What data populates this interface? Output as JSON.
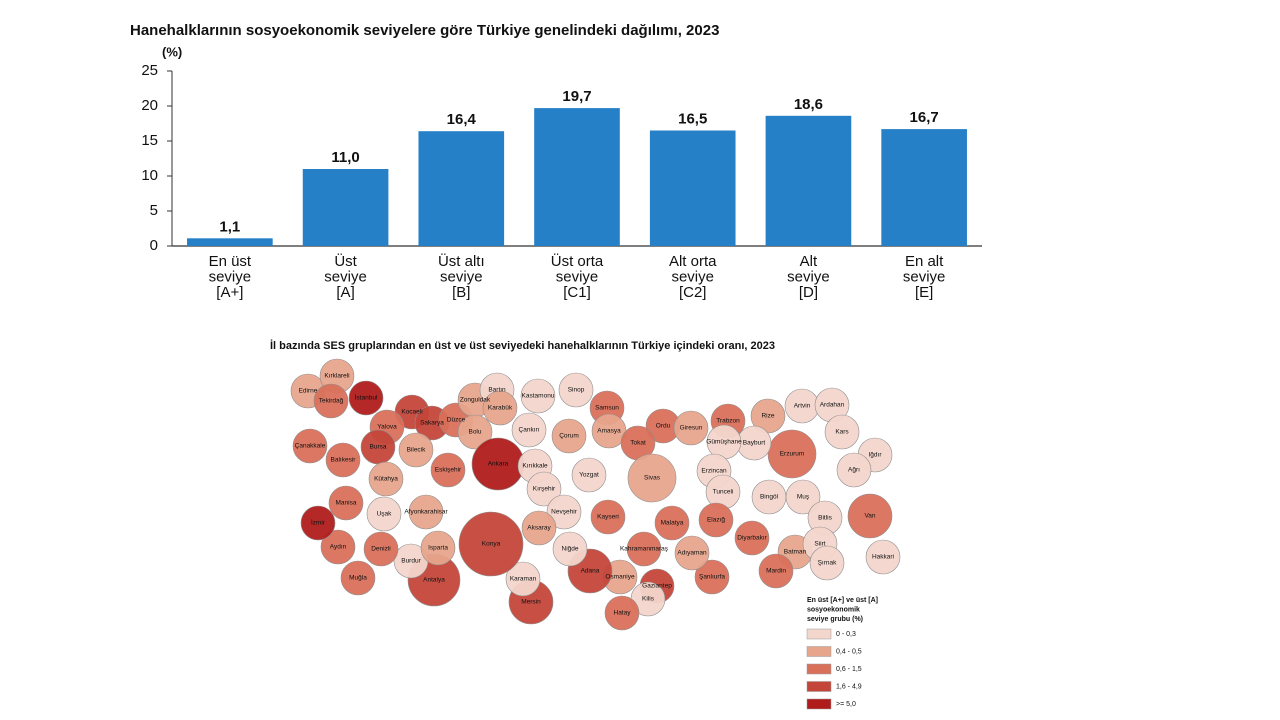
{
  "chart_data": [
    {
      "type": "bar",
      "title": "Hanehalklarının sosyoekonomik seviyelere göre Türkiye genelindeki dağılımı, 2023",
      "y_label": "(%)",
      "categories": [
        [
          "En üst",
          "seviye",
          "[A+]"
        ],
        [
          "Üst",
          "seviye",
          "[A]"
        ],
        [
          "Üst altı",
          "seviye",
          "[B]"
        ],
        [
          "Üst orta",
          "seviye",
          "[C1]"
        ],
        [
          "Alt orta",
          "seviye",
          "[C2]"
        ],
        [
          "Alt",
          "seviye",
          "[D]"
        ],
        [
          "En alt",
          "seviye",
          "[E]"
        ]
      ],
      "values": [
        1.1,
        11.0,
        16.4,
        19.7,
        16.5,
        18.6,
        16.7
      ],
      "value_labels": [
        "1,1",
        "11,0",
        "16,4",
        "19,7",
        "16,5",
        "18,6",
        "16,7"
      ],
      "color": "#2580c8",
      "ylim": [
        0,
        25
      ],
      "yticks": [
        0,
        5,
        10,
        15,
        20,
        25
      ]
    },
    {
      "type": "map",
      "title": "İl bazında SES gruplarından en üst ve üst seviyedeki hanehalklarının Türkiye içindeki oranı, 2023",
      "legend_title": [
        "En üst [A+] ve üst [A]",
        "sosyoekonomik",
        "seviye grubu (%)"
      ],
      "classes": [
        {
          "label": "0  -  0,3",
          "color": "#f3d6cc"
        },
        {
          "label": "0,4 - 0,5",
          "color": "#e7a58c"
        },
        {
          "label": "0,6 - 1,5",
          "color": "#d9705a"
        },
        {
          "label": "1,6 - 4,9",
          "color": "#c4463a"
        },
        {
          "label": ">= 5,0",
          "color": "#b01c1c"
        }
      ],
      "provinces": [
        {
          "name": "Edirne",
          "class": 1
        },
        {
          "name": "Kırklareli",
          "class": 1
        },
        {
          "name": "Tekirdağ",
          "class": 2
        },
        {
          "name": "İstanbul",
          "class": 4
        },
        {
          "name": "Kocaeli",
          "class": 3
        },
        {
          "name": "Yalova",
          "class": 2
        },
        {
          "name": "Sakarya",
          "class": 3
        },
        {
          "name": "Düzce",
          "class": 2
        },
        {
          "name": "Zonguldak",
          "class": 1
        },
        {
          "name": "Bartın",
          "class": 0
        },
        {
          "name": "Karabük",
          "class": 1
        },
        {
          "name": "Kastamonu",
          "class": 0
        },
        {
          "name": "Sinop",
          "class": 0
        },
        {
          "name": "Samsun",
          "class": 2
        },
        {
          "name": "Ordu",
          "class": 2
        },
        {
          "name": "Giresun",
          "class": 1
        },
        {
          "name": "Trabzon",
          "class": 2
        },
        {
          "name": "Rize",
          "class": 1
        },
        {
          "name": "Artvin",
          "class": 0
        },
        {
          "name": "Ardahan",
          "class": 0
        },
        {
          "name": "Kars",
          "class": 0
        },
        {
          "name": "Iğdır",
          "class": 0
        },
        {
          "name": "Ağrı",
          "class": 0
        },
        {
          "name": "Erzurum",
          "class": 2
        },
        {
          "name": "Bayburt",
          "class": 0
        },
        {
          "name": "Gümüşhane",
          "class": 0
        },
        {
          "name": "Çanakkale",
          "class": 2
        },
        {
          "name": "Balıkesir",
          "class": 2
        },
        {
          "name": "Bursa",
          "class": 3
        },
        {
          "name": "Bilecik",
          "class": 1
        },
        {
          "name": "Bolu",
          "class": 1
        },
        {
          "name": "Çankırı",
          "class": 0
        },
        {
          "name": "Çorum",
          "class": 1
        },
        {
          "name": "Amasya",
          "class": 1
        },
        {
          "name": "Tokat",
          "class": 2
        },
        {
          "name": "Ankara",
          "class": 4
        },
        {
          "name": "Kırıkkale",
          "class": 0
        },
        {
          "name": "Eskişehir",
          "class": 2
        },
        {
          "name": "Kütahya",
          "class": 1
        },
        {
          "name": "Yozgat",
          "class": 0
        },
        {
          "name": "Sivas",
          "class": 1
        },
        {
          "name": "Erzincan",
          "class": 0
        },
        {
          "name": "Tunceli",
          "class": 0
        },
        {
          "name": "Bingöl",
          "class": 0
        },
        {
          "name": "Muş",
          "class": 0
        },
        {
          "name": "Bitlis",
          "class": 0
        },
        {
          "name": "Van",
          "class": 2
        },
        {
          "name": "Kırşehir",
          "class": 0
        },
        {
          "name": "Nevşehir",
          "class": 0
        },
        {
          "name": "Aksaray",
          "class": 1
        },
        {
          "name": "Kayseri",
          "class": 2
        },
        {
          "name": "Malatya",
          "class": 2
        },
        {
          "name": "Elazığ",
          "class": 2
        },
        {
          "name": "Diyarbakır",
          "class": 2
        },
        {
          "name": "Batman",
          "class": 1
        },
        {
          "name": "Siirt",
          "class": 0
        },
        {
          "name": "Şırnak",
          "class": 0
        },
        {
          "name": "Hakkari",
          "class": 0
        },
        {
          "name": "Mardin",
          "class": 2
        },
        {
          "name": "Şanlıurfa",
          "class": 2
        },
        {
          "name": "Adıyaman",
          "class": 1
        },
        {
          "name": "Kahramanmaraş",
          "class": 2
        },
        {
          "name": "Gaziantep",
          "class": 3
        },
        {
          "name": "Kilis",
          "class": 0
        },
        {
          "name": "Osmaniye",
          "class": 1
        },
        {
          "name": "Hatay",
          "class": 2
        },
        {
          "name": "Adana",
          "class": 3
        },
        {
          "name": "Niğde",
          "class": 0
        },
        {
          "name": "Mersin",
          "class": 3
        },
        {
          "name": "Karaman",
          "class": 0
        },
        {
          "name": "Konya",
          "class": 3
        },
        {
          "name": "Antalya",
          "class": 3
        },
        {
          "name": "Burdur",
          "class": 0
        },
        {
          "name": "Isparta",
          "class": 1
        },
        {
          "name": "Afyonkarahisar",
          "class": 1
        },
        {
          "name": "Uşak",
          "class": 0
        },
        {
          "name": "Denizli",
          "class": 2
        },
        {
          "name": "Muğla",
          "class": 2
        },
        {
          "name": "Aydın",
          "class": 2
        },
        {
          "name": "İzmir",
          "class": 4
        },
        {
          "name": "Manisa",
          "class": 2
        }
      ]
    }
  ]
}
